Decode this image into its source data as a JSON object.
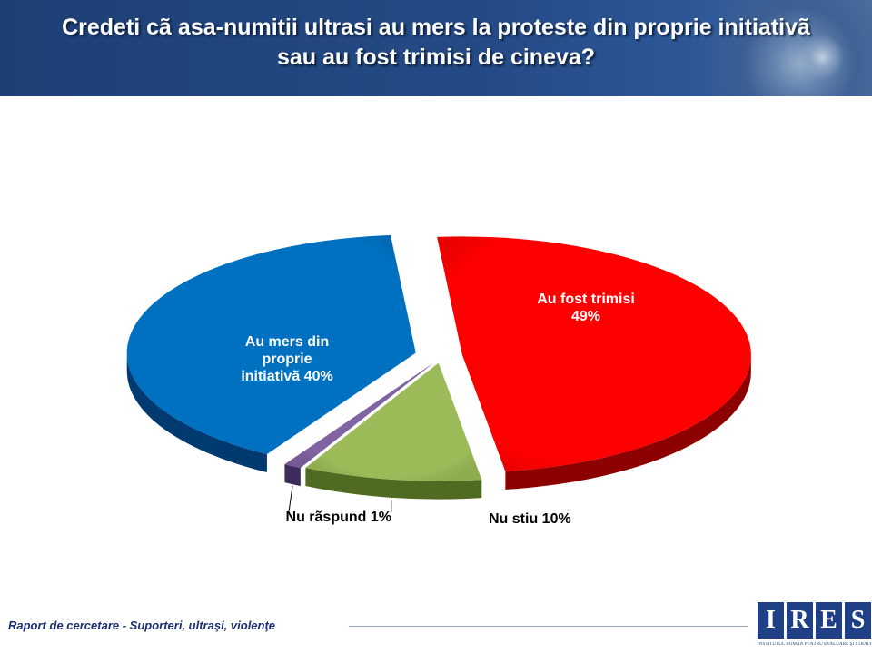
{
  "header": {
    "title_line1": "Credeti cã asa-numitii ultrasi au mers la proteste din proprie initiativã",
    "title_line2": "sau au fost trimisi de cineva?"
  },
  "chart_data": {
    "type": "pie",
    "title": "Credeti cã asa-numitii ultrasi au mers la proteste din proprie initiativã sau au fost trimisi de cineva?",
    "slices": [
      {
        "label": "Au fost trimisi 49%",
        "value": 49,
        "color": "#ff0000",
        "dark": "#8c0000"
      },
      {
        "label": "Nu stiu 10%",
        "value": 10,
        "color": "#9bbb59",
        "dark": "#4f6b22"
      },
      {
        "label": "Nu rãspund 1%",
        "value": 1,
        "color": "#8064a2",
        "dark": "#3f2c5e"
      },
      {
        "label": "Au mers din proprie initiativã 40%",
        "value": 40,
        "color": "#0070c0",
        "dark": "#003a70"
      }
    ],
    "labels": {
      "trimisi": [
        "Au fost trimisi",
        "49%"
      ],
      "proprie": [
        "Au mers din",
        "proprie",
        "initiativã 40%"
      ],
      "nustiu": "Nu stiu 10%",
      "nuraspund": "Nu rãspund 1%"
    }
  },
  "footer": {
    "report": "Raport de cercetare - Suporteri, ultraşi, violenţe"
  },
  "logo": {
    "letters": [
      "I",
      "R",
      "E",
      "S"
    ],
    "subtitle": "INSTITUTUL ROMÂN PENTRU EVALUARE ŞI STRATEGIE"
  }
}
